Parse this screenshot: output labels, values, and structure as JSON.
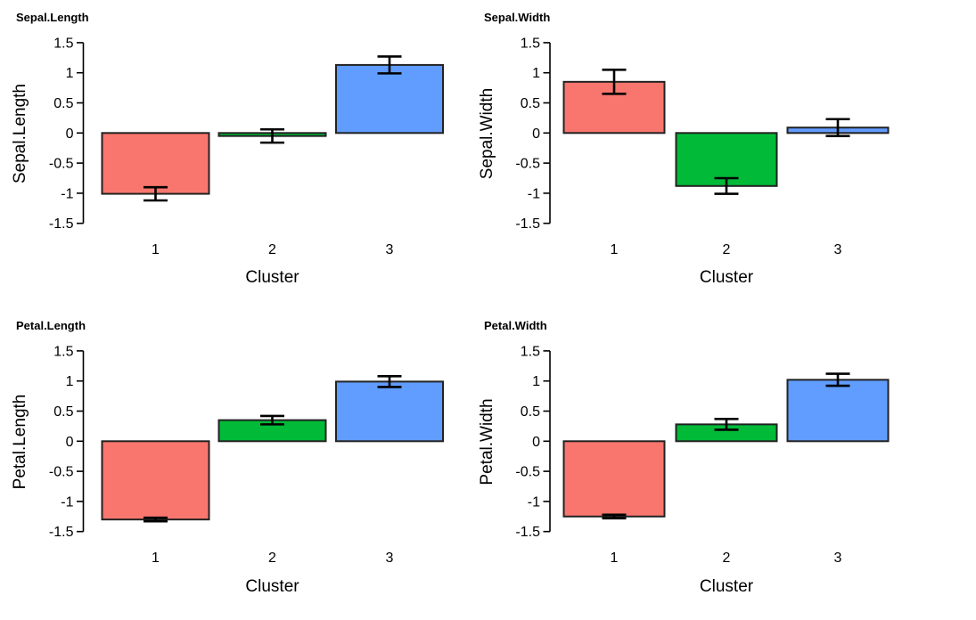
{
  "figure": {
    "background": "#ffffff",
    "text_color": "#000000",
    "axis_color": "#000000",
    "bar_border_color": "#222222",
    "error_bar_color": "#000000",
    "cluster_colors": [
      "#F8766D",
      "#00BA38",
      "#619CFF"
    ]
  },
  "chart_data": [
    {
      "type": "bar",
      "title": "Sepal.Length",
      "ylabel": "Sepal.Length",
      "xlabel": "Cluster",
      "categories": [
        "1",
        "2",
        "3"
      ],
      "values": [
        -1.01,
        -0.05,
        1.13
      ],
      "error_low": [
        -1.12,
        -0.16,
        0.99
      ],
      "error_high": [
        -0.9,
        0.06,
        1.27
      ],
      "bar_colors": [
        "#F8766D",
        "#00BA38",
        "#619CFF"
      ],
      "ylim": [
        -1.5,
        1.5
      ],
      "ytick_values": [
        1.5,
        1,
        0.5,
        0,
        -0.5,
        -1,
        -1.5
      ],
      "ytick_labels": [
        "1.5",
        "1",
        "0.5",
        "0",
        "-0.5",
        "-1",
        "-1.5"
      ],
      "grid": false,
      "legend": "none"
    },
    {
      "type": "bar",
      "title": "Sepal.Width",
      "ylabel": "Sepal.Width",
      "xlabel": "Cluster",
      "categories": [
        "1",
        "2",
        "3"
      ],
      "values": [
        0.85,
        -0.88,
        0.09
      ],
      "error_low": [
        0.65,
        -1.01,
        -0.05
      ],
      "error_high": [
        1.05,
        -0.75,
        0.23
      ],
      "bar_colors": [
        "#F8766D",
        "#00BA38",
        "#619CFF"
      ],
      "ylim": [
        -1.5,
        1.5
      ],
      "ytick_values": [
        1.5,
        1,
        0.5,
        0,
        -0.5,
        -1,
        -1.5
      ],
      "ytick_labels": [
        "1.5",
        "1",
        "0.5",
        "0",
        "-0.5",
        "-1",
        "-1.5"
      ],
      "grid": false,
      "legend": "none"
    },
    {
      "type": "bar",
      "title": "Petal.Length",
      "ylabel": "Petal.Length",
      "xlabel": "Cluster",
      "categories": [
        "1",
        "2",
        "3"
      ],
      "values": [
        -1.3,
        0.35,
        0.99
      ],
      "error_low": [
        -1.33,
        0.28,
        0.9
      ],
      "error_high": [
        -1.27,
        0.42,
        1.08
      ],
      "bar_colors": [
        "#F8766D",
        "#00BA38",
        "#619CFF"
      ],
      "ylim": [
        -1.5,
        1.5
      ],
      "ytick_values": [
        1.5,
        1,
        0.5,
        0,
        -0.5,
        -1,
        -1.5
      ],
      "ytick_labels": [
        "1.5",
        "1",
        "0.5",
        "0",
        "-0.5",
        "-1",
        "-1.5"
      ],
      "grid": false,
      "legend": "none"
    },
    {
      "type": "bar",
      "title": "Petal.Width",
      "ylabel": "Petal.Width",
      "xlabel": "Cluster",
      "categories": [
        "1",
        "2",
        "3"
      ],
      "values": [
        -1.25,
        0.28,
        1.02
      ],
      "error_low": [
        -1.28,
        0.19,
        0.92
      ],
      "error_high": [
        -1.22,
        0.37,
        1.12
      ],
      "bar_colors": [
        "#F8766D",
        "#00BA38",
        "#619CFF"
      ],
      "ylim": [
        -1.5,
        1.5
      ],
      "ytick_values": [
        1.5,
        1,
        0.5,
        0,
        -0.5,
        -1,
        -1.5
      ],
      "ytick_labels": [
        "1.5",
        "1",
        "0.5",
        "0",
        "-0.5",
        "-1",
        "-1.5"
      ],
      "grid": false,
      "legend": "none"
    }
  ]
}
